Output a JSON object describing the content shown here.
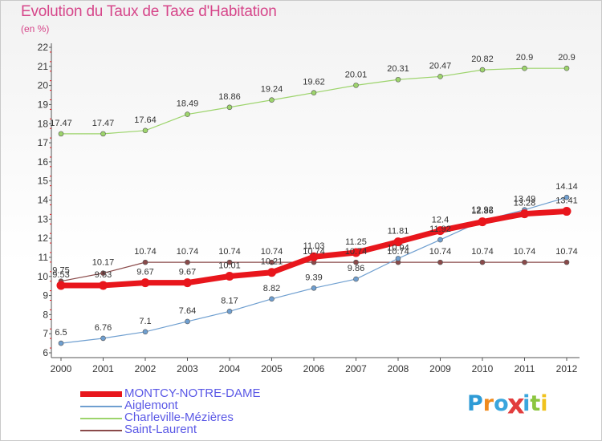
{
  "title": "Evolution du Taux de Taxe d'Habitation",
  "unit_label": "(en %)",
  "brand": {
    "text": "Proxiti",
    "letter_colors": [
      "#2e9bd6",
      "#f08a1c",
      "#3aa6dd",
      "#e23d3d",
      "#3aa6dd",
      "#8cc63f",
      "#f0c21c"
    ]
  },
  "chart_data": {
    "type": "line",
    "title": "Evolution du Taux de Taxe d'Habitation",
    "ylabel": "(en %)",
    "xlabel": "",
    "x": [
      2000,
      2001,
      2002,
      2003,
      2004,
      2005,
      2006,
      2007,
      2008,
      2009,
      2010,
      2011,
      2012
    ],
    "ylim": [
      6,
      22
    ],
    "yticks": [
      6,
      7,
      8,
      9,
      10,
      11,
      12,
      13,
      14,
      15,
      16,
      17,
      18,
      19,
      20,
      21,
      22
    ],
    "grid": false,
    "legend_position": "bottom-left",
    "series": [
      {
        "name": "MONTCY-NOTRE-DAME",
        "color": "#e8161c",
        "values": [
          9.53,
          9.53,
          9.67,
          9.67,
          10.01,
          10.21,
          11.03,
          11.25,
          11.81,
          12.4,
          12.86,
          13.28,
          13.41
        ],
        "labels": [
          "9.53",
          "9.53",
          "9.67",
          "9.67",
          "10.01",
          "10.21",
          "11.03",
          "11.25",
          "11.81",
          "12.4",
          "12.86",
          "13.28",
          "13.41"
        ]
      },
      {
        "name": "Aiglemont",
        "color": "#6f9fd0",
        "values": [
          6.5,
          6.76,
          7.1,
          7.64,
          8.17,
          8.82,
          9.39,
          9.86,
          10.94,
          11.92,
          12.92,
          13.49,
          14.14
        ],
        "labels": [
          "6.5",
          "6.76",
          "7.1",
          "7.64",
          "8.17",
          "8.82",
          "9.39",
          "9.86",
          "10.94",
          "11.92",
          "12.92",
          "13.49",
          "14.14"
        ]
      },
      {
        "name": "Charleville-Mézières",
        "color": "#9dd46c",
        "values": [
          17.47,
          17.47,
          17.64,
          18.49,
          18.86,
          19.24,
          19.62,
          20.01,
          20.31,
          20.47,
          20.82,
          20.9,
          20.9
        ],
        "labels": [
          "17.47",
          "17.47",
          "17.64",
          "18.49",
          "18.86",
          "19.24",
          "19.62",
          "20.01",
          "20.31",
          "20.47",
          "20.82",
          "20.9",
          "20.9"
        ]
      },
      {
        "name": "Saint-Laurent",
        "color": "#8a4a4a",
        "values": [
          9.75,
          10.17,
          10.74,
          10.74,
          10.74,
          10.74,
          10.74,
          10.74,
          10.74,
          10.74,
          10.74,
          10.74,
          10.74
        ],
        "labels": [
          "9.75",
          "10.17",
          "10.74",
          "10.74",
          "10.74",
          "10.74",
          "10.74",
          "10.74",
          "10.74",
          "10.74",
          "10.74",
          "10.74",
          "10.74"
        ]
      }
    ]
  }
}
